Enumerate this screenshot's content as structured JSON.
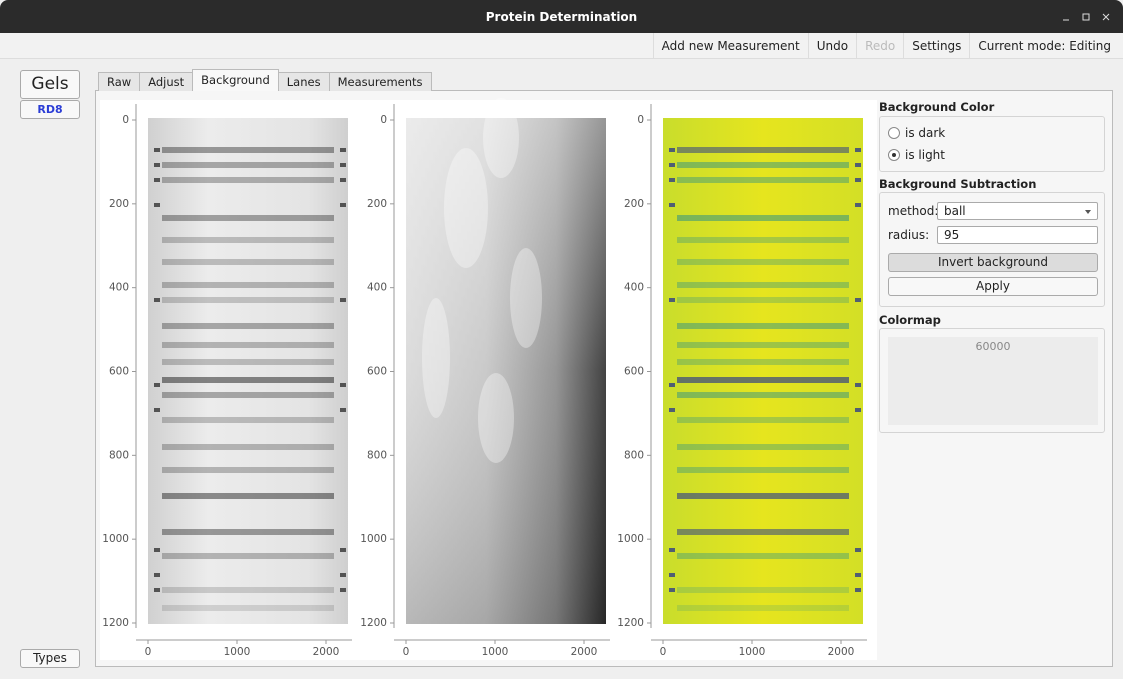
{
  "window": {
    "title": "Protein Determination"
  },
  "menu": {
    "items": [
      "Add new Measurement",
      "Undo",
      "Redo",
      "Settings",
      "Current mode: Editing"
    ],
    "disabled": [
      2
    ]
  },
  "sidebar": {
    "header": "Gels",
    "items": [
      "RD8"
    ],
    "footer": "Types"
  },
  "tabs": {
    "items": [
      "Raw",
      "Adjust",
      "Background",
      "Lanes",
      "Measurements"
    ],
    "active": 2
  },
  "plots": [
    {
      "yticks": [
        0,
        200,
        400,
        600,
        800,
        1000,
        1200
      ],
      "xticks": [
        0,
        1000,
        2000
      ]
    },
    {
      "yticks": [
        0,
        200,
        400,
        600,
        800,
        1000,
        1200
      ],
      "xticks": [
        0,
        1000,
        2000
      ]
    },
    {
      "yticks": [
        0,
        200,
        400,
        600,
        800,
        1000,
        1200
      ],
      "xticks": [
        0,
        1000,
        2000
      ]
    }
  ],
  "settings": {
    "background_color": {
      "title": "Background Color",
      "options": [
        "is dark",
        "is light"
      ],
      "selected": 1
    },
    "background_subtraction": {
      "title": "Background Subtraction",
      "method_label": "method:",
      "method": "ball",
      "radius_label": "radius:",
      "radius": 95,
      "buttons": [
        "Invert background",
        "Apply"
      ]
    },
    "colormap": {
      "title": "Colormap",
      "max_label": 60000
    }
  }
}
